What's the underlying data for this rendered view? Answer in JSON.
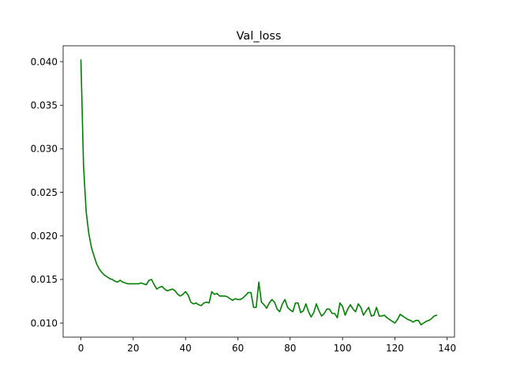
{
  "chart_data": {
    "type": "line",
    "title": "Val_loss",
    "xlabel": "",
    "ylabel": "",
    "xlim": [
      -6.8,
      142.8
    ],
    "ylim": [
      0.00838,
      0.04182
    ],
    "x_ticks": [
      0,
      20,
      40,
      60,
      80,
      100,
      120,
      140
    ],
    "x_tick_labels": [
      "0",
      "20",
      "40",
      "60",
      "80",
      "100",
      "120",
      "140"
    ],
    "y_ticks": [
      0.01,
      0.015,
      0.02,
      0.025,
      0.03,
      0.035,
      0.04
    ],
    "y_tick_labels": [
      "0.010",
      "0.015",
      "0.020",
      "0.025",
      "0.030",
      "0.035",
      "0.040"
    ],
    "grid": false,
    "legend": "none",
    "series": [
      {
        "color": "#008000",
        "x": [
          0,
          1,
          2,
          3,
          4,
          5,
          6,
          7,
          8,
          9,
          10,
          11,
          12,
          13,
          14,
          15,
          16,
          17,
          18,
          19,
          20,
          21,
          22,
          23,
          24,
          25,
          26,
          27,
          28,
          29,
          30,
          31,
          32,
          33,
          34,
          35,
          36,
          37,
          38,
          39,
          40,
          41,
          42,
          43,
          44,
          45,
          46,
          47,
          48,
          49,
          50,
          51,
          52,
          53,
          54,
          55,
          56,
          57,
          58,
          59,
          60,
          61,
          62,
          63,
          64,
          65,
          66,
          67,
          68,
          69,
          70,
          71,
          72,
          73,
          74,
          75,
          76,
          77,
          78,
          79,
          80,
          81,
          82,
          83,
          84,
          85,
          86,
          87,
          88,
          89,
          90,
          91,
          92,
          93,
          94,
          95,
          96,
          97,
          98,
          99,
          100,
          101,
          102,
          103,
          104,
          105,
          106,
          107,
          108,
          109,
          110,
          111,
          112,
          113,
          114,
          115,
          116,
          117,
          118,
          119,
          120,
          121,
          122,
          123,
          124,
          125,
          126,
          127,
          128,
          129,
          130,
          131,
          132,
          133,
          134,
          135,
          136
        ],
        "values": [
          0.0402,
          0.028,
          0.0228,
          0.0203,
          0.0187,
          0.0177,
          0.0168,
          0.0162,
          0.0158,
          0.0155,
          0.0153,
          0.0151,
          0.015,
          0.0148,
          0.0147,
          0.0149,
          0.0147,
          0.0146,
          0.0145,
          0.0145,
          0.0145,
          0.0145,
          0.0145,
          0.0146,
          0.0145,
          0.0144,
          0.0149,
          0.015,
          0.0144,
          0.0139,
          0.0141,
          0.0142,
          0.0139,
          0.0137,
          0.0138,
          0.0139,
          0.0137,
          0.0133,
          0.0131,
          0.0133,
          0.0136,
          0.0132,
          0.0124,
          0.0122,
          0.0123,
          0.0121,
          0.012,
          0.0123,
          0.0124,
          0.0123,
          0.0136,
          0.0133,
          0.0134,
          0.0131,
          0.0131,
          0.0131,
          0.013,
          0.0128,
          0.0126,
          0.0128,
          0.0127,
          0.0127,
          0.0129,
          0.0132,
          0.0135,
          0.0135,
          0.0118,
          0.0118,
          0.0147,
          0.0124,
          0.0121,
          0.0117,
          0.0123,
          0.0127,
          0.0124,
          0.0116,
          0.0113,
          0.0122,
          0.0127,
          0.0118,
          0.0115,
          0.0113,
          0.0123,
          0.0123,
          0.0112,
          0.0114,
          0.0122,
          0.0113,
          0.0107,
          0.0112,
          0.0122,
          0.0114,
          0.0108,
          0.0111,
          0.0116,
          0.0116,
          0.0111,
          0.0111,
          0.0106,
          0.0123,
          0.0119,
          0.0109,
          0.0116,
          0.0121,
          0.0116,
          0.0113,
          0.0122,
          0.0118,
          0.0109,
          0.0114,
          0.0118,
          0.0108,
          0.0109,
          0.0118,
          0.0108,
          0.0108,
          0.0109,
          0.0106,
          0.0104,
          0.0102,
          0.01,
          0.0104,
          0.011,
          0.0108,
          0.0106,
          0.0104,
          0.0103,
          0.0101,
          0.0103,
          0.0103,
          0.0098,
          0.01,
          0.0102,
          0.0103,
          0.0105,
          0.0108,
          0.0109
        ]
      }
    ]
  }
}
